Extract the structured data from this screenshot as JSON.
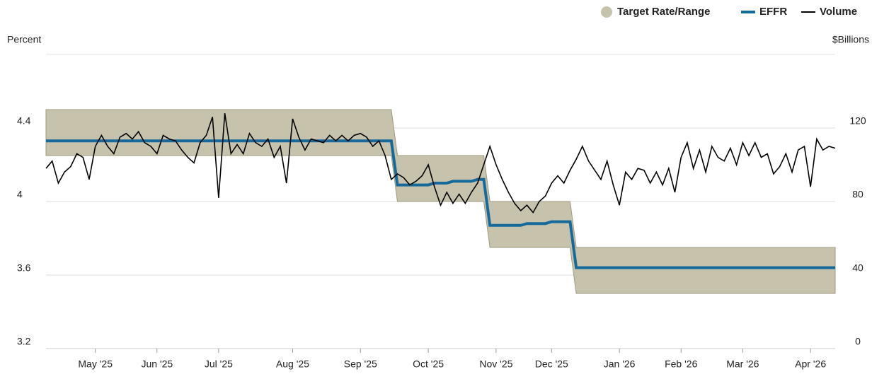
{
  "chart_data": {
    "type": "line",
    "ylabel": "Percent",
    "y2label": "$Billions",
    "ylim": [
      3.2,
      4.8
    ],
    "yticks": [
      3.2,
      3.6,
      4,
      4.4
    ],
    "y2lim": [
      0,
      160
    ],
    "y2ticks": [
      0,
      40,
      80,
      120
    ],
    "grid": true,
    "legend": "top-right",
    "categories": [
      null,
      null,
      null,
      null,
      null,
      null,
      null,
      null,
      "May '25",
      null,
      null,
      null,
      null,
      null,
      null,
      null,
      null,
      null,
      "Jun '25",
      null,
      null,
      null,
      null,
      null,
      null,
      null,
      null,
      null,
      "Jul '25",
      null,
      null,
      null,
      null,
      null,
      null,
      null,
      null,
      null,
      null,
      null,
      "Aug '25",
      null,
      null,
      null,
      null,
      null,
      null,
      null,
      null,
      null,
      null,
      "Sep '25",
      null,
      null,
      null,
      null,
      null,
      null,
      null,
      null,
      null,
      null,
      "Oct '25",
      null,
      null,
      null,
      null,
      null,
      null,
      null,
      null,
      null,
      null,
      "Nov '25",
      null,
      null,
      null,
      null,
      null,
      null,
      null,
      null,
      "Dec '25",
      null,
      null,
      null,
      null,
      null,
      null,
      null,
      null,
      null,
      null,
      "Jan '26",
      null,
      null,
      null,
      null,
      null,
      null,
      null,
      null,
      null,
      "Feb '26",
      null,
      null,
      null,
      null,
      null,
      null,
      null,
      null,
      null,
      "Mar '26",
      null,
      null,
      null,
      null,
      null,
      null,
      null,
      null,
      null,
      null,
      "Apr '26",
      null,
      null,
      null,
      null
    ],
    "series": [
      {
        "name": "Target Rate/Range",
        "type": "range",
        "color": "#c6c2ab",
        "upper": [
          4.5,
          4.5,
          4.5,
          4.5,
          4.5,
          4.5,
          4.5,
          4.5,
          4.5,
          4.5,
          4.5,
          4.5,
          4.5,
          4.5,
          4.5,
          4.5,
          4.5,
          4.5,
          4.5,
          4.5,
          4.5,
          4.5,
          4.5,
          4.5,
          4.5,
          4.5,
          4.5,
          4.5,
          4.5,
          4.5,
          4.5,
          4.5,
          4.5,
          4.5,
          4.5,
          4.5,
          4.5,
          4.5,
          4.5,
          4.5,
          4.5,
          4.5,
          4.5,
          4.5,
          4.5,
          4.5,
          4.5,
          4.5,
          4.5,
          4.5,
          4.5,
          4.5,
          4.5,
          4.5,
          4.5,
          4.5,
          4.5,
          4.25,
          4.25,
          4.25,
          4.25,
          4.25,
          4.25,
          4.25,
          4.25,
          4.25,
          4.25,
          4.25,
          4.25,
          4.25,
          4.25,
          4.25,
          4,
          4,
          4,
          4,
          4,
          4,
          4,
          4,
          4,
          4,
          4,
          4,
          4,
          4,
          3.75,
          3.75,
          3.75,
          3.75,
          3.75,
          3.75,
          3.75,
          3.75,
          3.75,
          3.75,
          3.75,
          3.75,
          3.75,
          3.75,
          3.75,
          3.75,
          3.75,
          3.75,
          3.75,
          3.75,
          3.75,
          3.75,
          3.75,
          3.75,
          3.75,
          3.75,
          3.75,
          3.75,
          3.75,
          3.75,
          3.75,
          3.75,
          3.75,
          3.75,
          3.75,
          3.75,
          3.75,
          3.75,
          3.75,
          3.75,
          3.75,
          3.75,
          3.75
        ],
        "lower": [
          4.25,
          4.25,
          4.25,
          4.25,
          4.25,
          4.25,
          4.25,
          4.25,
          4.25,
          4.25,
          4.25,
          4.25,
          4.25,
          4.25,
          4.25,
          4.25,
          4.25,
          4.25,
          4.25,
          4.25,
          4.25,
          4.25,
          4.25,
          4.25,
          4.25,
          4.25,
          4.25,
          4.25,
          4.25,
          4.25,
          4.25,
          4.25,
          4.25,
          4.25,
          4.25,
          4.25,
          4.25,
          4.25,
          4.25,
          4.25,
          4.25,
          4.25,
          4.25,
          4.25,
          4.25,
          4.25,
          4.25,
          4.25,
          4.25,
          4.25,
          4.25,
          4.25,
          4.25,
          4.25,
          4.25,
          4.25,
          4.25,
          4,
          4,
          4,
          4,
          4,
          4,
          4,
          4,
          4,
          4,
          4,
          4,
          4,
          4,
          4,
          3.75,
          3.75,
          3.75,
          3.75,
          3.75,
          3.75,
          3.75,
          3.75,
          3.75,
          3.75,
          3.75,
          3.75,
          3.75,
          3.75,
          3.5,
          3.5,
          3.5,
          3.5,
          3.5,
          3.5,
          3.5,
          3.5,
          3.5,
          3.5,
          3.5,
          3.5,
          3.5,
          3.5,
          3.5,
          3.5,
          3.5,
          3.5,
          3.5,
          3.5,
          3.5,
          3.5,
          3.5,
          3.5,
          3.5,
          3.5,
          3.5,
          3.5,
          3.5,
          3.5,
          3.5,
          3.5,
          3.5,
          3.5,
          3.5,
          3.5,
          3.5,
          3.5,
          3.5,
          3.5,
          3.5,
          3.5,
          3.5
        ]
      },
      {
        "name": "EFFR",
        "type": "line",
        "color": "#166a9b",
        "values": [
          4.33,
          4.33,
          4.33,
          4.33,
          4.33,
          4.33,
          4.33,
          4.33,
          4.33,
          4.33,
          4.33,
          4.33,
          4.33,
          4.33,
          4.33,
          4.33,
          4.33,
          4.33,
          4.33,
          4.33,
          4.33,
          4.33,
          4.33,
          4.33,
          4.33,
          4.33,
          4.33,
          4.33,
          4.33,
          4.33,
          4.33,
          4.33,
          4.33,
          4.33,
          4.33,
          4.33,
          4.33,
          4.33,
          4.33,
          4.33,
          4.33,
          4.33,
          4.33,
          4.33,
          4.33,
          4.33,
          4.33,
          4.33,
          4.33,
          4.33,
          4.33,
          4.33,
          4.33,
          4.33,
          4.33,
          4.33,
          4.33,
          4.09,
          4.09,
          4.09,
          4.09,
          4.09,
          4.09,
          4.1,
          4.1,
          4.1,
          4.11,
          4.11,
          4.11,
          4.11,
          4.12,
          4.12,
          3.87,
          3.87,
          3.87,
          3.87,
          3.87,
          3.87,
          3.88,
          3.88,
          3.88,
          3.88,
          3.89,
          3.89,
          3.89,
          3.89,
          3.64,
          3.64,
          3.64,
          3.64,
          3.64,
          3.64,
          3.64,
          3.64,
          3.64,
          3.64,
          3.64,
          3.64,
          3.64,
          3.64,
          3.64,
          3.64,
          3.64,
          3.64,
          3.64,
          3.64,
          3.64,
          3.64,
          3.64,
          3.64,
          3.64,
          3.64,
          3.64,
          3.64,
          3.64,
          3.64,
          3.64,
          3.64,
          3.64,
          3.64,
          3.64,
          3.64,
          3.64,
          3.64,
          3.64,
          3.64,
          3.64,
          3.64,
          3.64
        ]
      },
      {
        "name": "Volume",
        "type": "line",
        "axis": "y2",
        "color": "#000000",
        "values": [
          98,
          102,
          90,
          96,
          99,
          106,
          104,
          92,
          110,
          116,
          110,
          106,
          115,
          117,
          114,
          118,
          112,
          110,
          106,
          116,
          114,
          113,
          108,
          104,
          101,
          112,
          116,
          126,
          82,
          128,
          106,
          111,
          106,
          117,
          112,
          110,
          114,
          104,
          110,
          90,
          125,
          115,
          108,
          114,
          113,
          112,
          116,
          113,
          116,
          113,
          116,
          117,
          115,
          110,
          113,
          105,
          92,
          95,
          93,
          89,
          91,
          94,
          100,
          88,
          78,
          85,
          79,
          84,
          79,
          85,
          90,
          100,
          110,
          100,
          92,
          85,
          79,
          75,
          78,
          74,
          80,
          83,
          90,
          94,
          90,
          97,
          103,
          110,
          102,
          97,
          92,
          102,
          89,
          78,
          96,
          92,
          98,
          97,
          90,
          96,
          89,
          98,
          85,
          104,
          112,
          98,
          108,
          96,
          110,
          104,
          102,
          109,
          100,
          112,
          105,
          112,
          104,
          106,
          95,
          99,
          106,
          96,
          108,
          110,
          88,
          114,
          108,
          110,
          109
        ]
      }
    ]
  }
}
